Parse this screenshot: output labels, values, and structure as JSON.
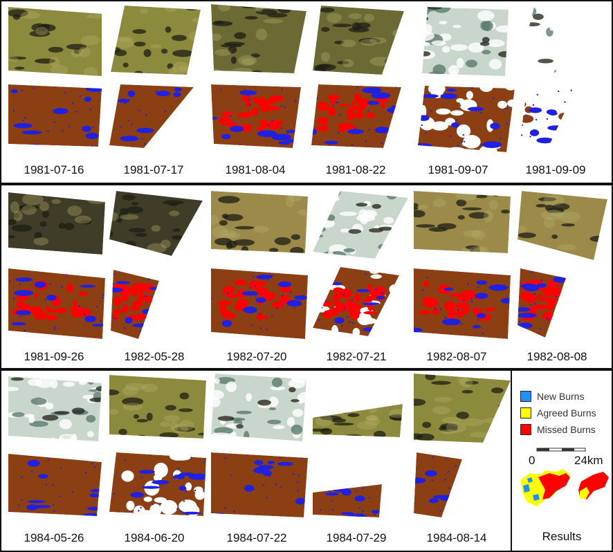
{
  "colors": {
    "burned_background": "#8B3F12",
    "new_burns": "#1E90FF",
    "agreed_burns": "#FFFF00",
    "missed_burns": "#FF0000",
    "blue_lakes": "#2020E0",
    "imagery_a": "#8C8A3C",
    "imagery_b": "#6B6A35",
    "imagery_c": "#3F3C28",
    "imagery_d": "#9C8A4A"
  },
  "rows": [
    {
      "dates": [
        "1981-07-16",
        "1981-07-17",
        "1981-08-04",
        "1981-08-22",
        "1981-09-07",
        "1981-09-09"
      ]
    },
    {
      "dates": [
        "1981-09-26",
        "1982-05-28",
        "1982-07-20",
        "1982-07-21",
        "1982-08-07",
        "1982-08-08"
      ]
    },
    {
      "dates": [
        "1984-05-26",
        "1984-06-20",
        "1984-07-22",
        "1984-07-29",
        "1984-08-14"
      ]
    }
  ],
  "legend": {
    "items": [
      {
        "label": "New Burns",
        "color": "#1E90FF",
        "icon": "square-swatch"
      },
      {
        "label": "Agreed Burns",
        "color": "#FFFF00",
        "icon": "square-swatch"
      },
      {
        "label": "Missed Burns",
        "color": "#FF0000",
        "icon": "square-swatch"
      }
    ],
    "scale_start": "0",
    "scale_end": "24km",
    "title": "Results"
  }
}
